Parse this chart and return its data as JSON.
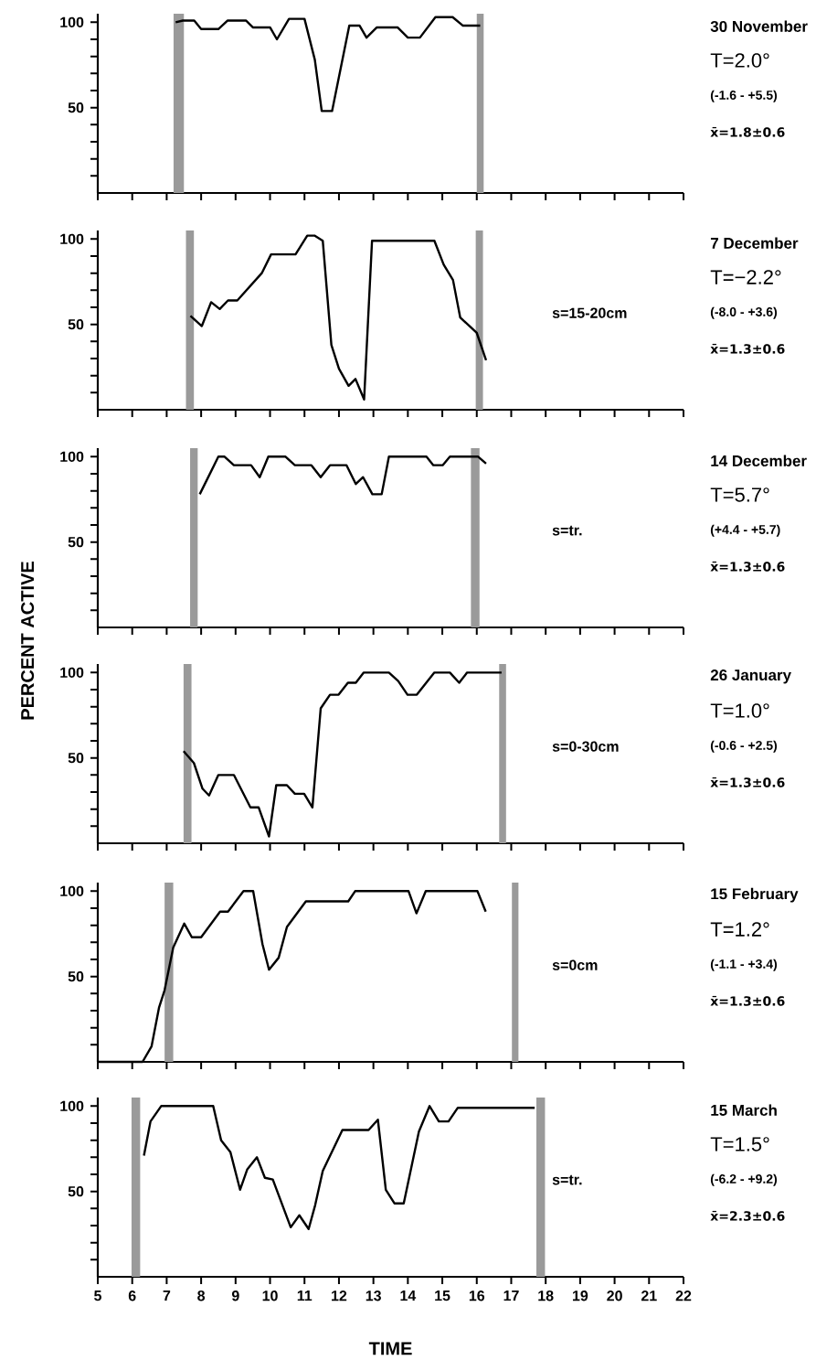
{
  "chart_data": [
    {
      "type": "line",
      "xlim": [
        5,
        22
      ],
      "xticks": [
        5,
        6,
        7,
        8,
        9,
        10,
        11,
        12,
        13,
        14,
        15,
        16,
        17,
        18,
        19,
        20,
        21,
        22
      ],
      "ylim": [
        0,
        105
      ],
      "yticks": [
        {
          "value": 10,
          "label": null
        },
        {
          "value": 20,
          "label": null
        },
        {
          "value": 30,
          "label": null
        },
        {
          "value": 40,
          "label": null
        },
        50,
        {
          "value": 60,
          "label": null
        },
        {
          "value": 70,
          "label": null
        },
        {
          "value": 80,
          "label": null
        },
        {
          "value": 90,
          "label": null
        },
        100
      ],
      "tick_labels": "y",
      "series": [
        {
          "color": "#000000",
          "x": [
            7.26,
            7.47,
            7.8,
            8.0,
            8.5,
            8.77,
            9.3,
            9.5,
            10.0,
            10.2,
            10.55,
            11.0,
            11.3,
            11.5,
            11.8,
            12.3,
            12.6,
            12.8,
            13.1,
            13.7,
            14.0,
            14.35,
            14.8,
            15.3,
            15.6,
            16.1
          ],
          "values": [
            100,
            101,
            101,
            96,
            96,
            101,
            101,
            97,
            97,
            90,
            102,
            102,
            78,
            48,
            48,
            98,
            98,
            91,
            97,
            97,
            91,
            91,
            103,
            103,
            98,
            98
          ]
        }
      ],
      "bands": [
        {
          "axis": "x",
          "from": 7.2,
          "to": 7.5,
          "color": "#9a9a9a"
        },
        {
          "axis": "x",
          "from": 16.0,
          "to": 16.2,
          "color": "#9a9a9a"
        }
      ],
      "annotations": [
        "30 November",
        "T=2.0°",
        "(-1.6 - +5.5)",
        "x̄=1.8±0.6"
      ]
    },
    {
      "type": "line",
      "xlim": [
        5,
        22
      ],
      "xticks": [
        5,
        6,
        7,
        8,
        9,
        10,
        11,
        12,
        13,
        14,
        15,
        16,
        17,
        18,
        19,
        20,
        21,
        22
      ],
      "ylim": [
        0,
        105
      ],
      "yticks": [
        {
          "value": 10,
          "label": null
        },
        {
          "value": 20,
          "label": null
        },
        {
          "value": 30,
          "label": null
        },
        {
          "value": 40,
          "label": null
        },
        50,
        {
          "value": 60,
          "label": null
        },
        {
          "value": 70,
          "label": null
        },
        {
          "value": 80,
          "label": null
        },
        {
          "value": 90,
          "label": null
        },
        100
      ],
      "tick_labels": "y",
      "series": [
        {
          "color": "#000000",
          "x": [
            7.69,
            8.02,
            8.29,
            8.54,
            8.78,
            9.05,
            9.76,
            10.03,
            10.74,
            11.08,
            11.29,
            11.53,
            11.78,
            12.0,
            12.28,
            12.48,
            12.73,
            12.96,
            14.77,
            15.04,
            15.31,
            15.52,
            16.0,
            16.27
          ],
          "values": [
            55,
            49,
            63,
            59,
            64,
            64,
            80,
            91,
            91,
            102,
            102,
            99,
            38,
            24,
            14,
            18,
            6,
            99,
            99,
            85,
            76,
            54,
            45,
            29
          ]
        }
      ],
      "bands": [
        {
          "axis": "x",
          "from": 7.56,
          "to": 7.79,
          "color": "#9a9a9a"
        },
        {
          "axis": "x",
          "from": 15.97,
          "to": 16.18,
          "color": "#9a9a9a"
        }
      ],
      "annotations": [
        "s=15-20cm",
        "7 December",
        "T=−2.2°",
        "(-8.0 - +3.6)",
        "x̄=1.3±0.6"
      ]
    },
    {
      "type": "line",
      "xlim": [
        5,
        22
      ],
      "xticks": [
        5,
        6,
        7,
        8,
        9,
        10,
        11,
        12,
        13,
        14,
        15,
        16,
        17,
        18,
        19,
        20,
        21,
        22
      ],
      "ylim": [
        0,
        105
      ],
      "yticks": [
        {
          "value": 10,
          "label": null
        },
        {
          "value": 20,
          "label": null
        },
        {
          "value": 30,
          "label": null
        },
        {
          "value": 40,
          "label": null
        },
        50,
        {
          "value": 60,
          "label": null
        },
        {
          "value": 70,
          "label": null
        },
        {
          "value": 80,
          "label": null
        },
        {
          "value": 90,
          "label": null
        },
        100
      ],
      "tick_labels": "y",
      "series": [
        {
          "color": "#000000",
          "x": [
            7.96,
            8.5,
            8.68,
            8.95,
            9.45,
            9.7,
            9.95,
            10.45,
            10.72,
            11.2,
            11.47,
            11.74,
            12.22,
            12.49,
            12.7,
            12.97,
            13.24,
            13.45,
            14.54,
            14.74,
            15.01,
            15.22,
            16.04,
            16.27
          ],
          "values": [
            78,
            100,
            100,
            95,
            95,
            88,
            100,
            100,
            95,
            95,
            88,
            95,
            95,
            84,
            88,
            78,
            78,
            100,
            100,
            95,
            95,
            100,
            100,
            96
          ]
        }
      ],
      "bands": [
        {
          "axis": "x",
          "from": 7.68,
          "to": 7.9,
          "color": "#9a9a9a"
        },
        {
          "axis": "x",
          "from": 15.83,
          "to": 16.08,
          "color": "#9a9a9a"
        }
      ],
      "annotations": [
        "s=tr.",
        "14 December",
        "T=5.7°",
        "(+4.4 - +5.7)",
        "x̄=1.3±0.6"
      ]
    },
    {
      "type": "line",
      "ylabel": "PERCENT ACTIVE",
      "xlim": [
        5,
        22
      ],
      "xticks": [
        5,
        6,
        7,
        8,
        9,
        10,
        11,
        12,
        13,
        14,
        15,
        16,
        17,
        18,
        19,
        20,
        21,
        22
      ],
      "ylim": [
        0,
        105
      ],
      "yticks": [
        {
          "value": 10,
          "label": null
        },
        {
          "value": 20,
          "label": null
        },
        {
          "value": 30,
          "label": null
        },
        {
          "value": 40,
          "label": null
        },
        50,
        {
          "value": 60,
          "label": null
        },
        {
          "value": 70,
          "label": null
        },
        {
          "value": 80,
          "label": null
        },
        {
          "value": 90,
          "label": null
        },
        100
      ],
      "tick_labels": "y",
      "series": [
        {
          "color": "#000000",
          "x": [
            7.49,
            7.79,
            8.04,
            8.23,
            8.5,
            8.95,
            9.43,
            9.67,
            9.97,
            10.18,
            10.49,
            10.72,
            10.99,
            11.23,
            11.47,
            11.74,
            11.99,
            12.26,
            12.49,
            12.72,
            13.45,
            13.72,
            13.99,
            14.26,
            14.77,
            15.22,
            15.49,
            15.72,
            16.72
          ],
          "values": [
            54,
            47,
            32,
            28,
            40,
            40,
            21,
            21,
            4,
            34,
            34,
            29,
            29,
            21,
            79,
            87,
            87,
            94,
            94,
            100,
            100,
            95,
            87,
            87,
            100,
            100,
            94,
            100,
            100
          ]
        }
      ],
      "bands": [
        {
          "axis": "x",
          "from": 7.49,
          "to": 7.72,
          "color": "#9a9a9a"
        },
        {
          "axis": "x",
          "from": 16.65,
          "to": 16.85,
          "color": "#9a9a9a"
        }
      ],
      "annotations": [
        "s=0-30cm",
        "26 January",
        "T=1.0°",
        "(-0.6 - +2.5)",
        "x̄=1.3±0.6"
      ]
    },
    {
      "type": "line",
      "xlim": [
        5,
        22
      ],
      "xticks": [
        5,
        6,
        7,
        8,
        9,
        10,
        11,
        12,
        13,
        14,
        15,
        16,
        17,
        18,
        19,
        20,
        21,
        22
      ],
      "ylim": [
        0,
        105
      ],
      "yticks": [
        {
          "value": 10,
          "label": null
        },
        {
          "value": 20,
          "label": null
        },
        {
          "value": 30,
          "label": null
        },
        {
          "value": 40,
          "label": null
        },
        50,
        {
          "value": 60,
          "label": null
        },
        {
          "value": 70,
          "label": null
        },
        {
          "value": 80,
          "label": null
        },
        {
          "value": 90,
          "label": null
        },
        100
      ],
      "tick_labels": "y",
      "series": [
        {
          "color": "#000000",
          "x": [
            5.0,
            6.3,
            6.56,
            6.78,
            6.94,
            7.19,
            7.51,
            7.73,
            8.0,
            8.55,
            8.78,
            9.23,
            9.51,
            9.78,
            9.97,
            10.25,
            10.49,
            11.04,
            12.27,
            12.47,
            14.02,
            14.25,
            14.52,
            16.02,
            16.26
          ],
          "values": [
            0,
            0,
            9,
            32,
            42,
            67,
            81,
            73,
            73,
            88,
            88,
            100,
            100,
            69,
            54,
            61,
            79,
            94,
            94,
            100,
            100,
            87,
            100,
            100,
            88
          ]
        }
      ],
      "bands": [
        {
          "axis": "x",
          "from": 6.94,
          "to": 7.19,
          "color": "#9a9a9a"
        },
        {
          "axis": "x",
          "from": 17.02,
          "to": 17.21,
          "color": "#9a9a9a"
        }
      ],
      "annotations": [
        "s=0cm",
        "15 February",
        "T=1.2°",
        "(-1.1 - +3.4)",
        "x̄=1.3±0.6"
      ]
    },
    {
      "type": "line",
      "xlabel": "TIME",
      "xlim": [
        5,
        22
      ],
      "xticks": [
        5,
        6,
        7,
        8,
        9,
        10,
        11,
        12,
        13,
        14,
        15,
        16,
        17,
        18,
        19,
        20,
        21,
        22
      ],
      "ylim": [
        0,
        105
      ],
      "yticks": [
        {
          "value": 10,
          "label": null
        },
        {
          "value": 20,
          "label": null
        },
        {
          "value": 30,
          "label": null
        },
        {
          "value": 40,
          "label": null
        },
        50,
        {
          "value": 60,
          "label": null
        },
        {
          "value": 70,
          "label": null
        },
        {
          "value": 80,
          "label": null
        },
        {
          "value": 90,
          "label": null
        },
        100
      ],
      "series": [
        {
          "color": "#000000",
          "x": [
            6.34,
            6.53,
            6.84,
            8.35,
            8.58,
            8.85,
            9.13,
            9.34,
            9.62,
            9.85,
            10.08,
            10.6,
            10.85,
            11.12,
            11.31,
            11.53,
            12.1,
            12.86,
            13.13,
            13.36,
            13.61,
            13.88,
            14.32,
            14.63,
            14.9,
            15.18,
            15.45,
            17.68
          ],
          "values": [
            71,
            91,
            100,
            100,
            80,
            73,
            51,
            63,
            70,
            58,
            57,
            29,
            36,
            28,
            42,
            62,
            86,
            86,
            92,
            51,
            43,
            43,
            85,
            100,
            91,
            91,
            99,
            99
          ]
        }
      ],
      "bands": [
        {
          "axis": "x",
          "from": 5.98,
          "to": 6.23,
          "color": "#9a9a9a"
        },
        {
          "axis": "x",
          "from": 17.73,
          "to": 17.98,
          "color": "#9a9a9a"
        }
      ],
      "annotations": [
        "s=tr.",
        "15 March",
        "T=1.5°",
        "(-6.2 - +9.2)",
        "x̄=2.3±0.6"
      ]
    }
  ]
}
